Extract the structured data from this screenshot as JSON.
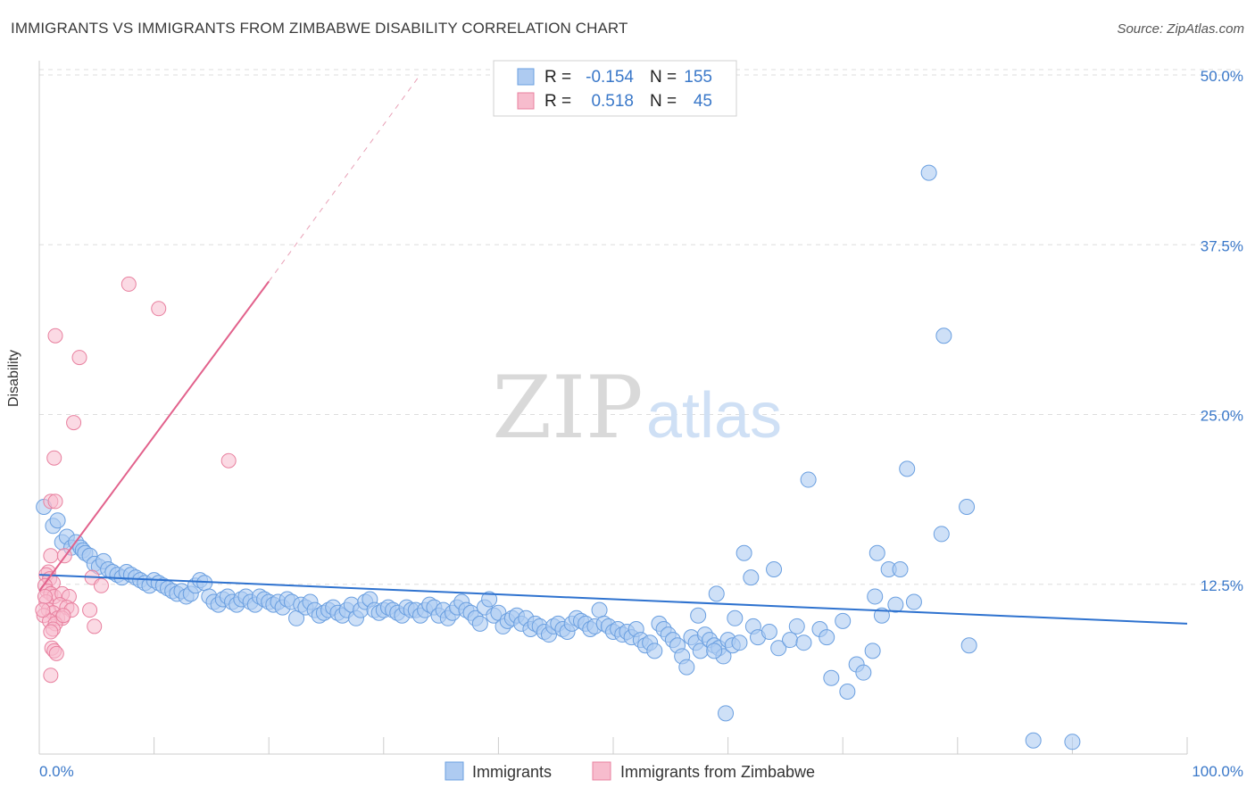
{
  "header": {
    "title": "IMMIGRANTS VS IMMIGRANTS FROM ZIMBABWE DISABILITY CORRELATION CHART",
    "source": "Source: ZipAtlas.com"
  },
  "watermark": {
    "zip": "ZIP",
    "atlas": "atlas"
  },
  "colors": {
    "blue_fill": "#aecbf1",
    "blue_stroke": "#6a9fe0",
    "blue_line": "#2e72cf",
    "pink_fill": "#f7bccd",
    "pink_stroke": "#e8809f",
    "pink_line": "#e2628c",
    "axis_text": "#3a78c9",
    "grid": "#dddddd"
  },
  "chart_data": {
    "type": "scatter",
    "title": "IMMIGRANTS VS IMMIGRANTS FROM ZIMBABWE DISABILITY CORRELATION CHART",
    "ylabel": "Disability",
    "xlim": [
      0,
      100
    ],
    "ylim": [
      0,
      50
    ],
    "x_tick_labels": [
      "0.0%",
      "100.0%"
    ],
    "y_ticks": [
      12.5,
      25.0,
      37.5,
      50.0
    ],
    "y_tick_labels": [
      "12.5%",
      "25.0%",
      "37.5%",
      "50.0%"
    ],
    "grid": "horizontal dashed",
    "legend": {
      "top": [
        {
          "r_label": "R =",
          "r_value": "-0.154",
          "n_label": "N =",
          "n_value": "155"
        },
        {
          "r_label": "R =",
          "r_value": "0.518",
          "n_label": "N =",
          "n_value": "45"
        }
      ],
      "bottom": [
        "Immigrants",
        "Immigrants from Zimbabwe"
      ]
    },
    "series": [
      {
        "name": "Immigrants",
        "color": "#aecbf1",
        "trend": {
          "x": [
            0,
            100
          ],
          "y": [
            13.2,
            9.6
          ]
        },
        "points": [
          [
            0.4,
            18.2
          ],
          [
            1.2,
            16.8
          ],
          [
            1.6,
            17.2
          ],
          [
            2.0,
            15.6
          ],
          [
            2.4,
            16.0
          ],
          [
            2.8,
            15.2
          ],
          [
            3.2,
            15.6
          ],
          [
            3.6,
            15.2
          ],
          [
            3.8,
            15.0
          ],
          [
            4.0,
            14.8
          ],
          [
            4.4,
            14.6
          ],
          [
            4.8,
            14.0
          ],
          [
            5.2,
            13.8
          ],
          [
            5.6,
            14.2
          ],
          [
            6.0,
            13.6
          ],
          [
            6.4,
            13.4
          ],
          [
            6.8,
            13.2
          ],
          [
            7.2,
            13.0
          ],
          [
            7.6,
            13.4
          ],
          [
            8.0,
            13.2
          ],
          [
            8.4,
            13.0
          ],
          [
            8.8,
            12.8
          ],
          [
            9.2,
            12.6
          ],
          [
            9.6,
            12.4
          ],
          [
            10.0,
            12.8
          ],
          [
            10.4,
            12.6
          ],
          [
            10.8,
            12.4
          ],
          [
            11.2,
            12.2
          ],
          [
            11.6,
            12.0
          ],
          [
            12.0,
            11.8
          ],
          [
            12.4,
            12.0
          ],
          [
            12.8,
            11.6
          ],
          [
            13.2,
            11.8
          ],
          [
            13.6,
            12.4
          ],
          [
            14.0,
            12.8
          ],
          [
            14.4,
            12.6
          ],
          [
            14.8,
            11.6
          ],
          [
            15.2,
            11.2
          ],
          [
            15.6,
            11.0
          ],
          [
            16.0,
            11.4
          ],
          [
            16.4,
            11.6
          ],
          [
            16.8,
            11.2
          ],
          [
            17.2,
            11.0
          ],
          [
            17.6,
            11.4
          ],
          [
            18.0,
            11.6
          ],
          [
            18.4,
            11.2
          ],
          [
            18.8,
            11.0
          ],
          [
            19.2,
            11.6
          ],
          [
            19.6,
            11.4
          ],
          [
            20.0,
            11.2
          ],
          [
            20.4,
            11.0
          ],
          [
            20.8,
            11.2
          ],
          [
            21.2,
            10.8
          ],
          [
            21.6,
            11.4
          ],
          [
            22.0,
            11.2
          ],
          [
            22.4,
            10.0
          ],
          [
            22.8,
            11.0
          ],
          [
            23.2,
            10.8
          ],
          [
            23.6,
            11.2
          ],
          [
            24.0,
            10.6
          ],
          [
            24.4,
            10.2
          ],
          [
            24.8,
            10.4
          ],
          [
            25.2,
            10.6
          ],
          [
            25.6,
            10.8
          ],
          [
            26.0,
            10.4
          ],
          [
            26.4,
            10.2
          ],
          [
            26.8,
            10.6
          ],
          [
            27.2,
            11.0
          ],
          [
            27.6,
            10.0
          ],
          [
            28.0,
            10.6
          ],
          [
            28.4,
            11.2
          ],
          [
            28.8,
            11.4
          ],
          [
            29.2,
            10.6
          ],
          [
            29.6,
            10.4
          ],
          [
            30.0,
            10.6
          ],
          [
            30.4,
            10.8
          ],
          [
            30.8,
            10.6
          ],
          [
            31.2,
            10.4
          ],
          [
            31.6,
            10.2
          ],
          [
            32.0,
            10.8
          ],
          [
            32.4,
            10.6
          ],
          [
            32.8,
            10.6
          ],
          [
            33.2,
            10.2
          ],
          [
            33.6,
            10.6
          ],
          [
            34.0,
            11.0
          ],
          [
            34.4,
            10.8
          ],
          [
            34.8,
            10.2
          ],
          [
            35.2,
            10.6
          ],
          [
            35.6,
            10.0
          ],
          [
            36.0,
            10.4
          ],
          [
            36.4,
            10.8
          ],
          [
            36.8,
            11.2
          ],
          [
            37.2,
            10.6
          ],
          [
            37.6,
            10.4
          ],
          [
            38.0,
            10.0
          ],
          [
            38.4,
            9.6
          ],
          [
            38.8,
            10.8
          ],
          [
            39.2,
            11.4
          ],
          [
            39.6,
            10.2
          ],
          [
            40.0,
            10.4
          ],
          [
            40.4,
            9.4
          ],
          [
            40.8,
            9.8
          ],
          [
            41.2,
            10.0
          ],
          [
            41.6,
            10.2
          ],
          [
            42.0,
            9.6
          ],
          [
            42.4,
            10.0
          ],
          [
            42.8,
            9.2
          ],
          [
            43.2,
            9.6
          ],
          [
            43.6,
            9.4
          ],
          [
            44.0,
            9.0
          ],
          [
            44.4,
            8.8
          ],
          [
            44.8,
            9.4
          ],
          [
            45.2,
            9.6
          ],
          [
            45.6,
            9.2
          ],
          [
            46.0,
            9.0
          ],
          [
            46.4,
            9.6
          ],
          [
            46.8,
            10.0
          ],
          [
            47.2,
            9.8
          ],
          [
            47.6,
            9.6
          ],
          [
            48.0,
            9.2
          ],
          [
            48.4,
            9.4
          ],
          [
            48.8,
            10.6
          ],
          [
            49.2,
            9.6
          ],
          [
            49.6,
            9.4
          ],
          [
            50.0,
            9.0
          ],
          [
            50.4,
            9.2
          ],
          [
            50.8,
            8.8
          ],
          [
            51.2,
            9.0
          ],
          [
            51.6,
            8.6
          ],
          [
            52.0,
            9.2
          ],
          [
            52.4,
            8.4
          ],
          [
            52.8,
            8.0
          ],
          [
            53.2,
            8.2
          ],
          [
            53.6,
            7.6
          ],
          [
            54.0,
            9.6
          ],
          [
            54.4,
            9.2
          ],
          [
            54.8,
            8.8
          ],
          [
            55.2,
            8.4
          ],
          [
            55.6,
            8.0
          ],
          [
            56.0,
            7.2
          ],
          [
            56.4,
            6.4
          ],
          [
            56.8,
            8.6
          ],
          [
            57.2,
            8.2
          ],
          [
            57.6,
            7.6
          ],
          [
            58.0,
            8.8
          ],
          [
            58.4,
            8.4
          ],
          [
            58.8,
            8.0
          ],
          [
            59.2,
            7.8
          ],
          [
            59.6,
            7.2
          ],
          [
            60.0,
            8.4
          ],
          [
            60.4,
            8.0
          ]
        ],
        "outliers": [
          [
            77.5,
            42.8
          ],
          [
            78.8,
            30.8
          ],
          [
            75.6,
            21.0
          ],
          [
            67.0,
            20.2
          ],
          [
            80.8,
            18.2
          ],
          [
            78.6,
            16.2
          ],
          [
            61.4,
            14.8
          ],
          [
            73.0,
            14.8
          ],
          [
            64.0,
            13.6
          ],
          [
            74.0,
            13.6
          ],
          [
            75.0,
            13.6
          ],
          [
            62.0,
            13.0
          ],
          [
            72.8,
            11.6
          ],
          [
            62.2,
            9.4
          ],
          [
            60.6,
            10.0
          ],
          [
            73.4,
            10.2
          ],
          [
            59.8,
            3.0
          ],
          [
            81.0,
            8.0
          ],
          [
            72.6,
            7.6
          ],
          [
            71.2,
            6.6
          ],
          [
            69.0,
            5.6
          ],
          [
            70.4,
            4.6
          ],
          [
            58.8,
            7.6
          ],
          [
            57.4,
            10.2
          ],
          [
            59.0,
            11.8
          ],
          [
            61.0,
            8.2
          ],
          [
            62.6,
            8.6
          ],
          [
            63.6,
            9.0
          ],
          [
            64.4,
            7.8
          ],
          [
            65.4,
            8.4
          ],
          [
            66.0,
            9.4
          ],
          [
            66.6,
            8.2
          ],
          [
            68.0,
            9.2
          ],
          [
            68.6,
            8.6
          ],
          [
            70.0,
            9.8
          ],
          [
            71.8,
            6.0
          ],
          [
            74.6,
            11.0
          ],
          [
            76.2,
            11.2
          ],
          [
            86.6,
            1.0
          ],
          [
            90.0,
            0.9
          ]
        ]
      },
      {
        "name": "Immigrants from Zimbabwe",
        "color": "#f7bccd",
        "trend": {
          "x": [
            0,
            20
          ],
          "y": [
            12.0,
            34.8
          ]
        },
        "trend_dashed": {
          "x": [
            20,
            33
          ],
          "y": [
            34.8,
            49.8
          ]
        },
        "points": [
          [
            7.8,
            34.6
          ],
          [
            10.4,
            32.8
          ],
          [
            1.4,
            30.8
          ],
          [
            3.5,
            29.2
          ],
          [
            3.0,
            24.4
          ],
          [
            1.3,
            21.8
          ],
          [
            16.5,
            21.6
          ],
          [
            1.0,
            18.6
          ],
          [
            1.4,
            18.6
          ],
          [
            1.0,
            14.6
          ],
          [
            2.2,
            14.6
          ],
          [
            0.8,
            13.4
          ],
          [
            0.6,
            13.2
          ],
          [
            0.9,
            12.9
          ],
          [
            1.2,
            12.6
          ],
          [
            0.5,
            12.4
          ],
          [
            0.7,
            12.0
          ],
          [
            1.0,
            11.8
          ],
          [
            1.3,
            11.6
          ],
          [
            2.0,
            11.8
          ],
          [
            2.6,
            11.6
          ],
          [
            0.6,
            11.2
          ],
          [
            1.8,
            11.0
          ],
          [
            2.4,
            10.8
          ],
          [
            0.8,
            10.6
          ],
          [
            1.2,
            10.4
          ],
          [
            2.8,
            10.6
          ],
          [
            4.4,
            10.6
          ],
          [
            0.4,
            10.2
          ],
          [
            1.6,
            10.0
          ],
          [
            2.0,
            10.0
          ],
          [
            0.9,
            9.8
          ],
          [
            1.4,
            9.6
          ],
          [
            4.8,
            9.4
          ],
          [
            1.2,
            9.2
          ],
          [
            1.0,
            9.0
          ],
          [
            1.1,
            7.8
          ],
          [
            1.3,
            7.6
          ],
          [
            1.5,
            7.4
          ],
          [
            1.0,
            5.8
          ],
          [
            4.6,
            13.0
          ],
          [
            5.4,
            12.4
          ],
          [
            0.5,
            11.6
          ],
          [
            0.3,
            10.6
          ],
          [
            2.1,
            10.2
          ]
        ]
      }
    ]
  }
}
